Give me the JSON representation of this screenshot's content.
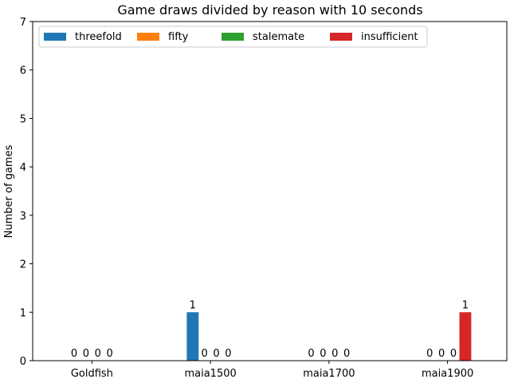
{
  "chart_data": {
    "type": "bar",
    "title": "Game draws divided by reason with 10 seconds",
    "xlabel": "",
    "ylabel": "Number of games",
    "ylim": [
      0,
      7
    ],
    "yticks": [
      0,
      1,
      2,
      3,
      4,
      5,
      6,
      7
    ],
    "categories": [
      "Goldfish",
      "maia1500",
      "maia1700",
      "maia1900"
    ],
    "series": [
      {
        "name": "threefold",
        "color": "#1f77b4",
        "values": [
          0,
          1,
          0,
          0
        ]
      },
      {
        "name": "fifty",
        "color": "#ff7f0e",
        "values": [
          0,
          0,
          0,
          0
        ]
      },
      {
        "name": "stalemate",
        "color": "#2ca02c",
        "values": [
          0,
          0,
          0,
          0
        ]
      },
      {
        "name": "insufficient",
        "color": "#d62728",
        "values": [
          0,
          0,
          0,
          1
        ]
      }
    ],
    "legend_position": "top-left",
    "grid": false
  }
}
